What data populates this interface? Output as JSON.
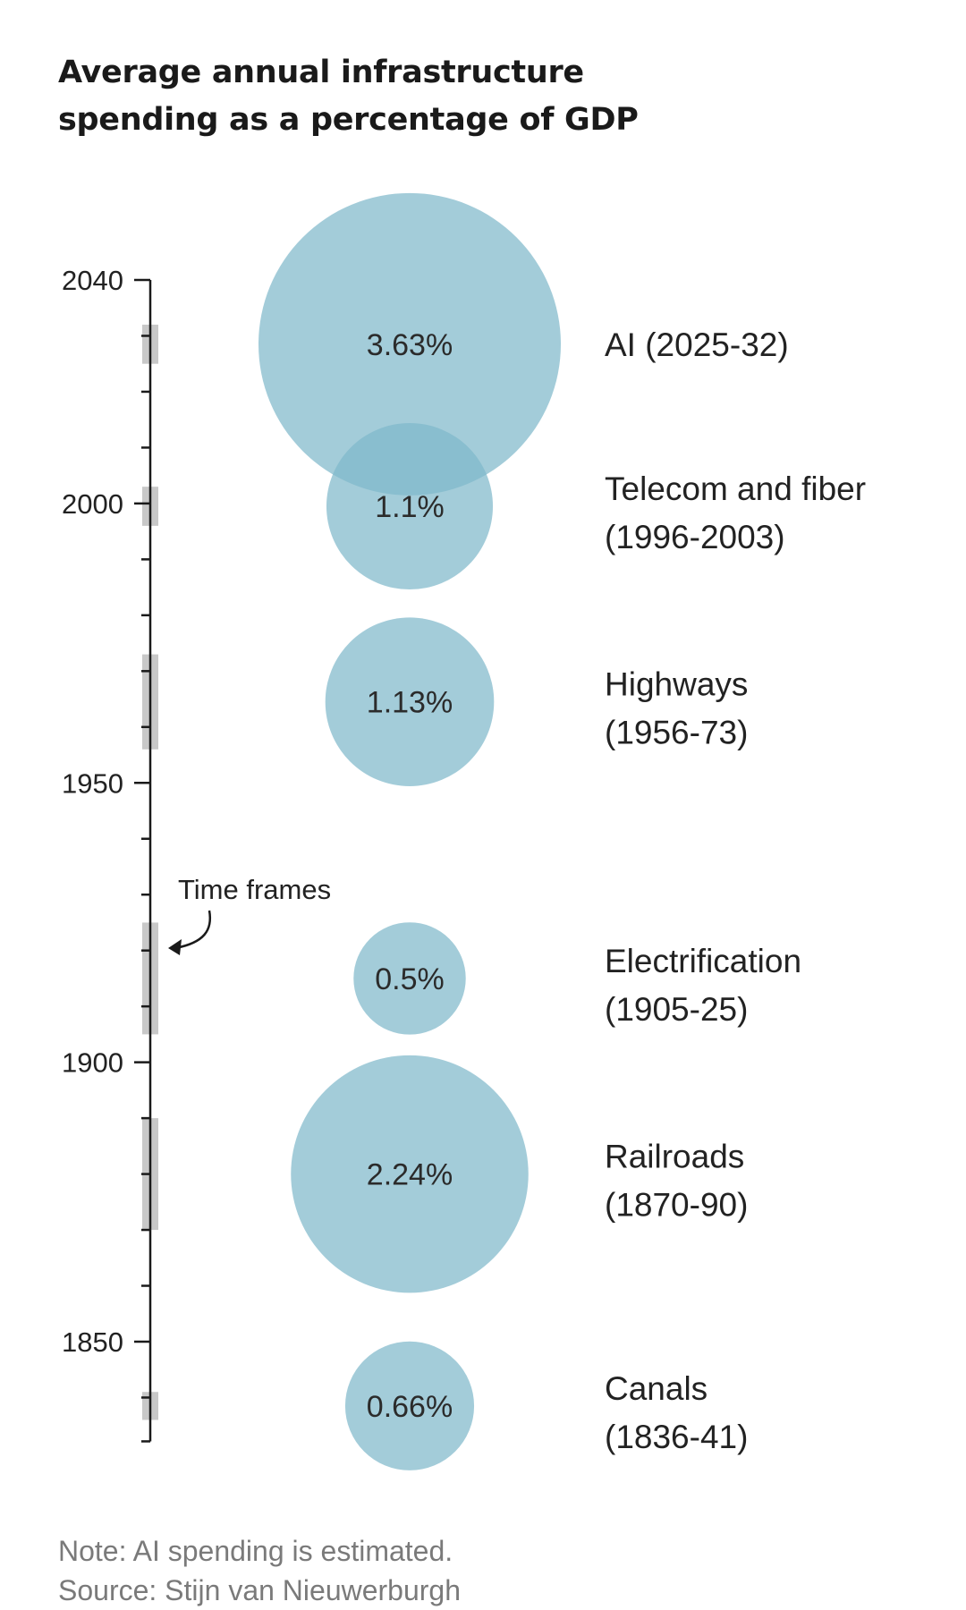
{
  "chart_data": {
    "type": "bubble",
    "title": "Average annual infrastructure spending as a percentage of GDP",
    "y_axis": {
      "range": [
        1836,
        2040
      ],
      "labeled_ticks": [
        2040,
        2000,
        1950,
        1900,
        1850
      ],
      "minor_tick_step": 10
    },
    "annotation": "Time frames",
    "series": [
      {
        "label_line1": "AI (2025-32)",
        "label_line2": "",
        "start": 2025,
        "end": 2032,
        "value": 3.63,
        "value_label": "3.63%"
      },
      {
        "label_line1": "Telecom and fiber",
        "label_line2": "(1996-2003)",
        "start": 1996,
        "end": 2003,
        "value": 1.1,
        "value_label": "1.1%"
      },
      {
        "label_line1": "Highways",
        "label_line2": "(1956-73)",
        "start": 1956,
        "end": 1973,
        "value": 1.13,
        "value_label": "1.13%"
      },
      {
        "label_line1": "Electrification",
        "label_line2": "(1905-25)",
        "start": 1905,
        "end": 1925,
        "value": 0.5,
        "value_label": "0.5%"
      },
      {
        "label_line1": "Railroads",
        "label_line2": "(1870-90)",
        "start": 1870,
        "end": 1890,
        "value": 2.24,
        "value_label": "2.24%"
      },
      {
        "label_line1": "Canals",
        "label_line2": "(1836-41)",
        "start": 1836,
        "end": 1841,
        "value": 0.66,
        "value_label": "0.66%"
      }
    ],
    "bubble_color": "#7fb8cb",
    "timeframe_color": "#c8c8c8",
    "notes": [
      "Note: AI spending is estimated.",
      "Source: Stijn van Nieuwerburgh"
    ]
  }
}
